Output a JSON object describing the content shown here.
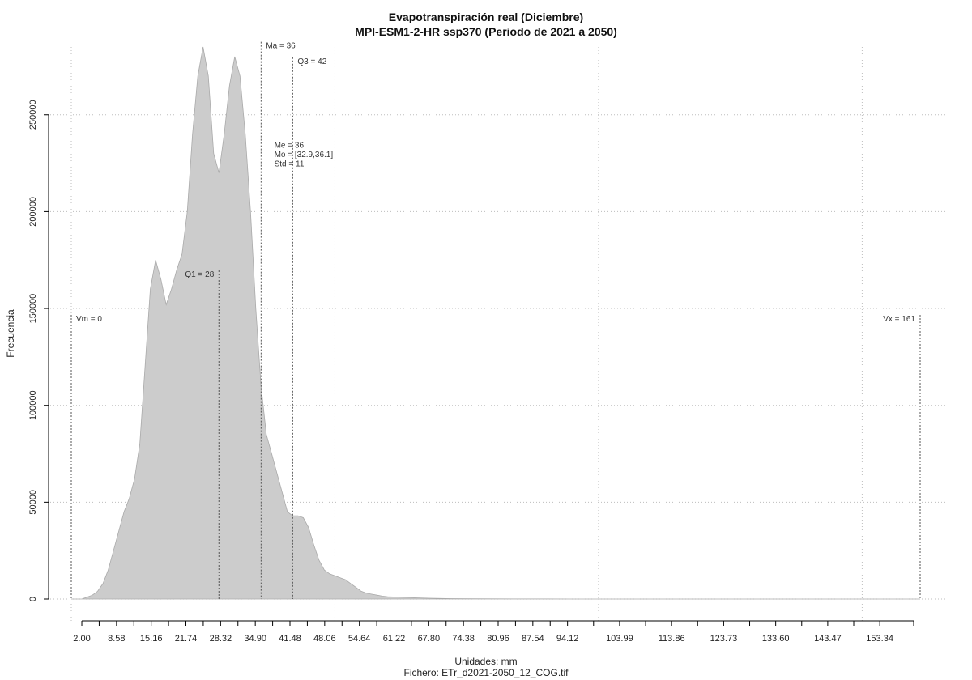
{
  "chart_data": {
    "type": "area",
    "title": "Evapotranspiración real (Diciembre)",
    "subtitle": "MPI-ESM1-2-HR ssp370 (Periodo de 2021 a 2050)",
    "xlabel": "Unidades: mm",
    "footnote": "Fichero: ETr_d2021-2050_12_COG.tif",
    "ylabel": "Frecuencia",
    "xlim": [
      0,
      161
    ],
    "ylim": [
      0,
      285000
    ],
    "grid": true,
    "y_ticks": [
      0,
      50000,
      100000,
      150000,
      200000,
      250000
    ],
    "x_ticks": [
      "2.00",
      "8.58",
      "15.16",
      "21.74",
      "28.32",
      "34.90",
      "41.48",
      "48.06",
      "54.64",
      "61.22",
      "67.80",
      "74.38",
      "80.96",
      "87.54",
      "94.12",
      "103.99",
      "113.86",
      "123.73",
      "133.60",
      "143.47",
      "153.34"
    ],
    "x": [
      0,
      1,
      2,
      3,
      4,
      5,
      6,
      7,
      8,
      9,
      10,
      11,
      12,
      13,
      14,
      15,
      16,
      17,
      18,
      19,
      20,
      21,
      22,
      23,
      24,
      25,
      26,
      27,
      28,
      29,
      30,
      31,
      32,
      33,
      34,
      35,
      36,
      37,
      38,
      39,
      40,
      41,
      42,
      43,
      44,
      45,
      46,
      47,
      48,
      49,
      50,
      51,
      52,
      53,
      54,
      55,
      56,
      57,
      58,
      59,
      60,
      62,
      64,
      66,
      68,
      70,
      72,
      75,
      80,
      85,
      90,
      95,
      100,
      110,
      120,
      130,
      140,
      150,
      161
    ],
    "y": [
      0,
      0,
      0,
      1000,
      2000,
      4000,
      8000,
      15000,
      25000,
      35000,
      45000,
      52000,
      62000,
      80000,
      120000,
      160000,
      175000,
      165000,
      152000,
      160000,
      170000,
      178000,
      200000,
      240000,
      270000,
      285000,
      270000,
      230000,
      220000,
      240000,
      265000,
      280000,
      270000,
      240000,
      200000,
      150000,
      110000,
      85000,
      75000,
      65000,
      55000,
      45000,
      43000,
      43000,
      42000,
      37000,
      28000,
      20000,
      15000,
      13000,
      12000,
      11000,
      10000,
      8000,
      6000,
      4000,
      3000,
      2500,
      2000,
      1500,
      1200,
      1000,
      800,
      600,
      400,
      300,
      200,
      150,
      100,
      50,
      30,
      20,
      10,
      5,
      0,
      0,
      0,
      0,
      0
    ],
    "markers": [
      {
        "x": 0,
        "label": "Vm = 0",
        "label_side": "right",
        "label_y": 145000
      },
      {
        "x": 28,
        "label": "Q1 = 28",
        "label_side": "left",
        "label_y": 168000
      },
      {
        "x": 36,
        "label": "Ma = 36",
        "label_side": "right",
        "label_y": 286000
      },
      {
        "x": 42,
        "label": "Q3 = 42",
        "label_side": "right",
        "label_y": 278000
      },
      {
        "x": 161,
        "label": "Vx = 161",
        "label_side": "left",
        "label_y": 145000
      }
    ],
    "stats_box": {
      "lines": [
        "Me = 36",
        "Mo = [32.9,36.1]",
        "Std = 11"
      ],
      "x": 38.5,
      "y": 233000
    },
    "colors": {
      "fill": "#cccccc",
      "grid": "#bdbdbd",
      "axis": "#000000",
      "marker": "#555555"
    }
  }
}
